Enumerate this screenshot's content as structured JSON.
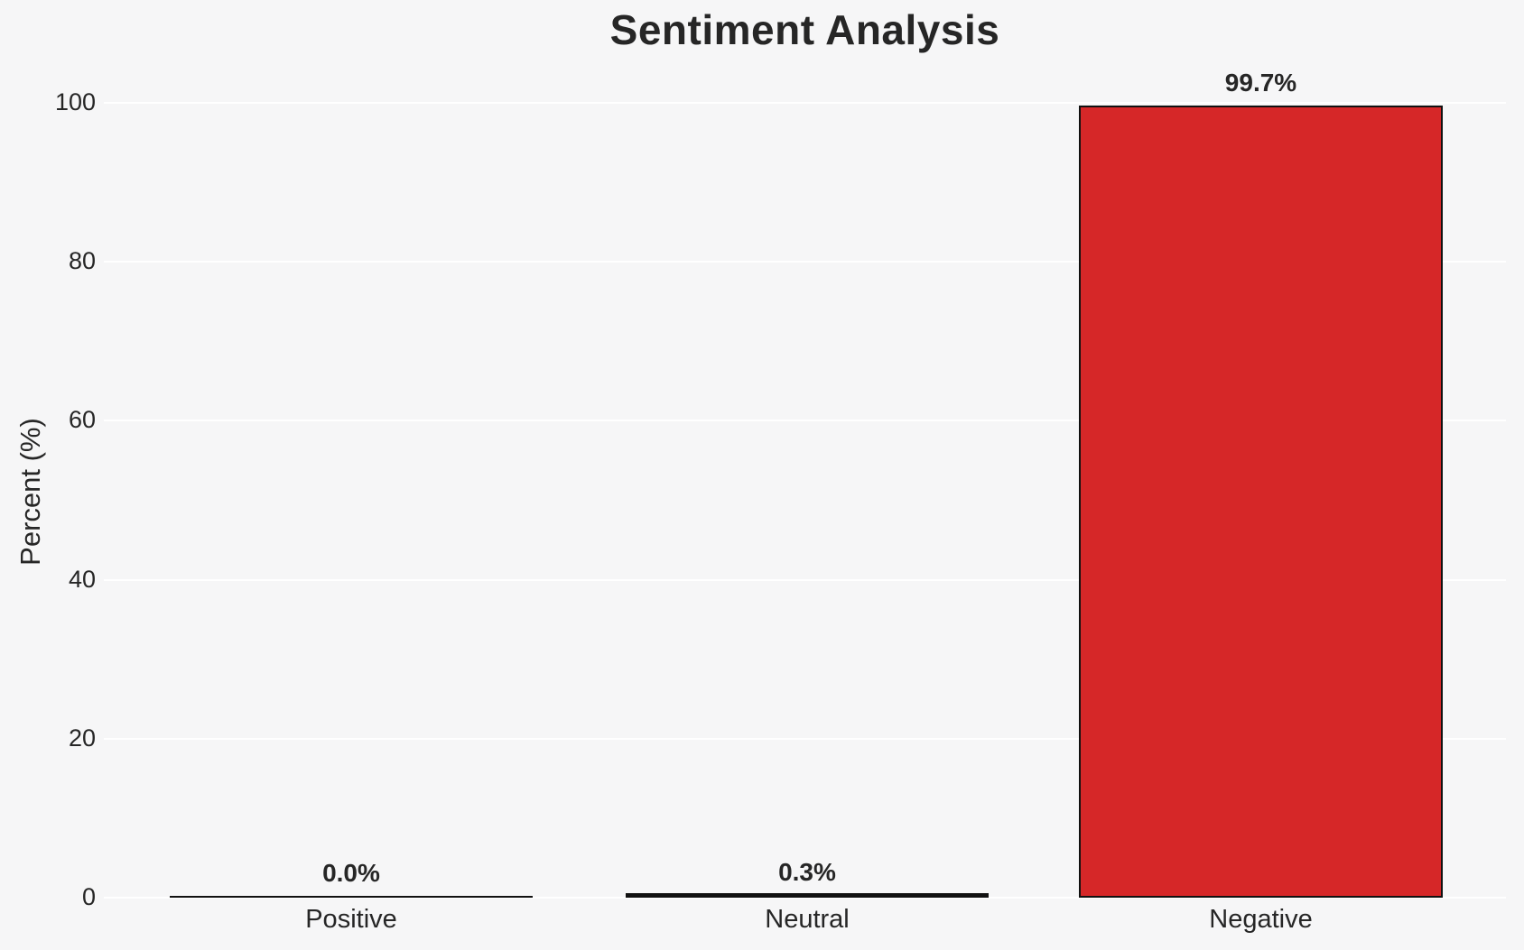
{
  "chart_data": {
    "type": "bar",
    "title": "Sentiment Analysis",
    "xlabel": "",
    "ylabel": "Percent (%)",
    "categories": [
      "Positive",
      "Neutral",
      "Negative"
    ],
    "values": [
      0.0,
      0.3,
      99.7
    ],
    "value_labels": [
      "0.0%",
      "0.3%",
      "99.7%"
    ],
    "ytick_labels": [
      "0",
      "20",
      "40",
      "60",
      "80",
      "100"
    ],
    "ylim": [
      0,
      100
    ],
    "grid": "horizontal gridlines on",
    "legend_position": "none",
    "colors": {
      "bar_fill": "#d62728",
      "bar_edge": "#111111",
      "background": "#f6f6f7",
      "gridline": "#ffffff",
      "text": "#262626"
    }
  }
}
